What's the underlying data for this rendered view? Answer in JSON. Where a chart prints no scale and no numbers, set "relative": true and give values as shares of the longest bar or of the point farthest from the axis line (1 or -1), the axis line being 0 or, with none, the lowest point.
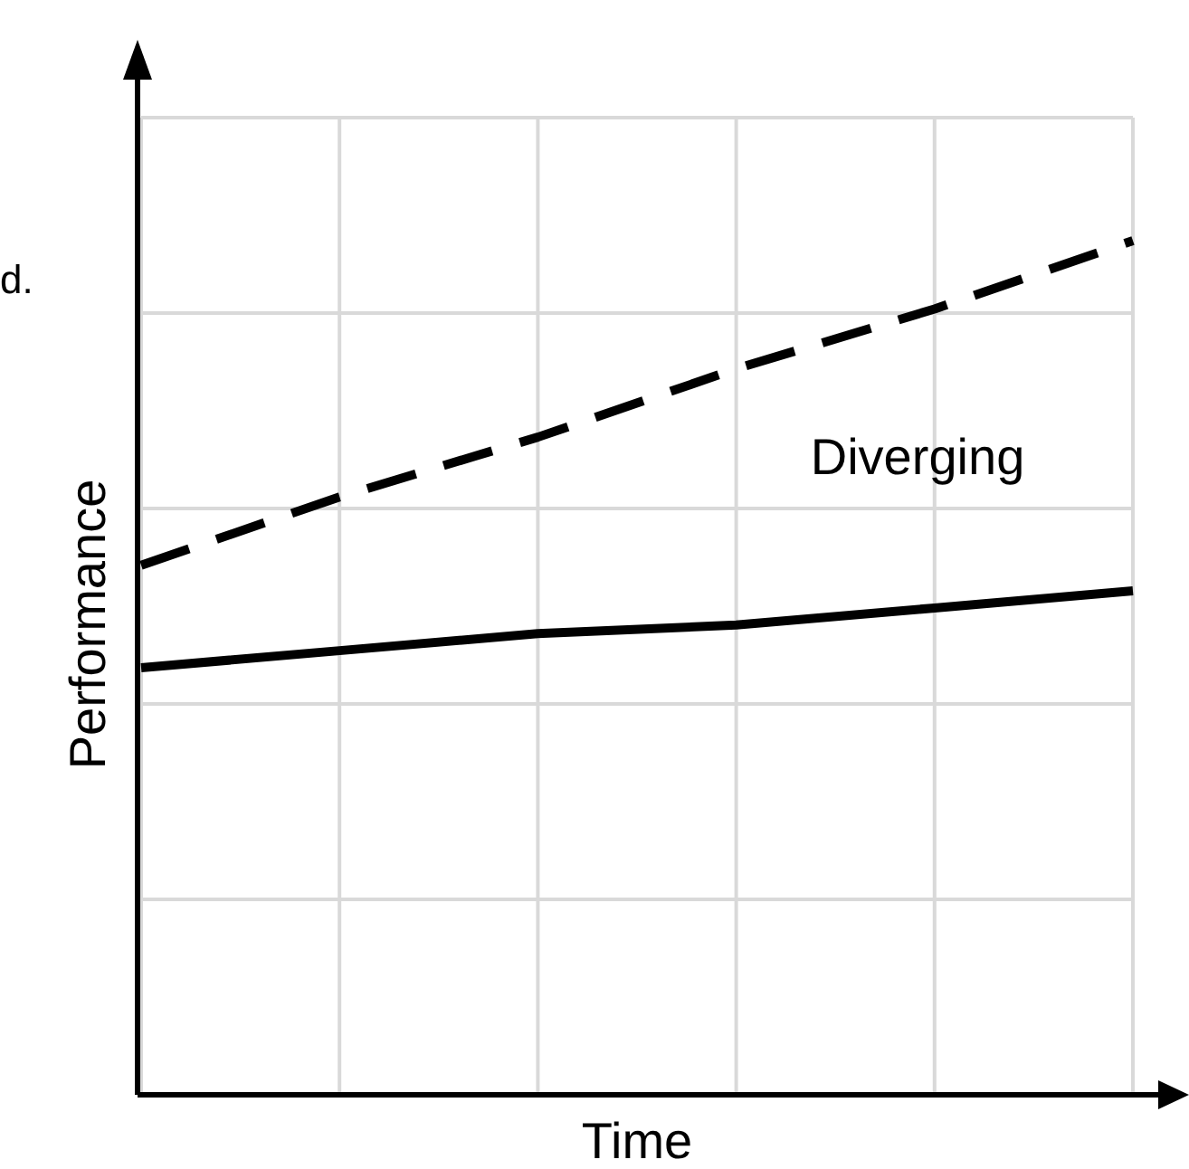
{
  "chart_data": {
    "type": "line",
    "xlabel": "Time",
    "ylabel": "Performance",
    "relative": true,
    "grid": true,
    "marker": "none",
    "annotations": [
      "Diverging",
      "d."
    ],
    "categories": [
      null,
      null,
      null,
      null,
      null,
      null
    ],
    "series": [
      {
        "color": "#000000",
        "line_style": "dashed",
        "values": [
          0.62,
          0.7,
          0.77,
          0.85,
          0.92,
          1.0
        ]
      },
      {
        "color": "#000000",
        "line_style": "solid",
        "values": [
          0.5,
          0.52,
          0.54,
          0.55,
          0.57,
          0.59
        ]
      }
    ]
  }
}
